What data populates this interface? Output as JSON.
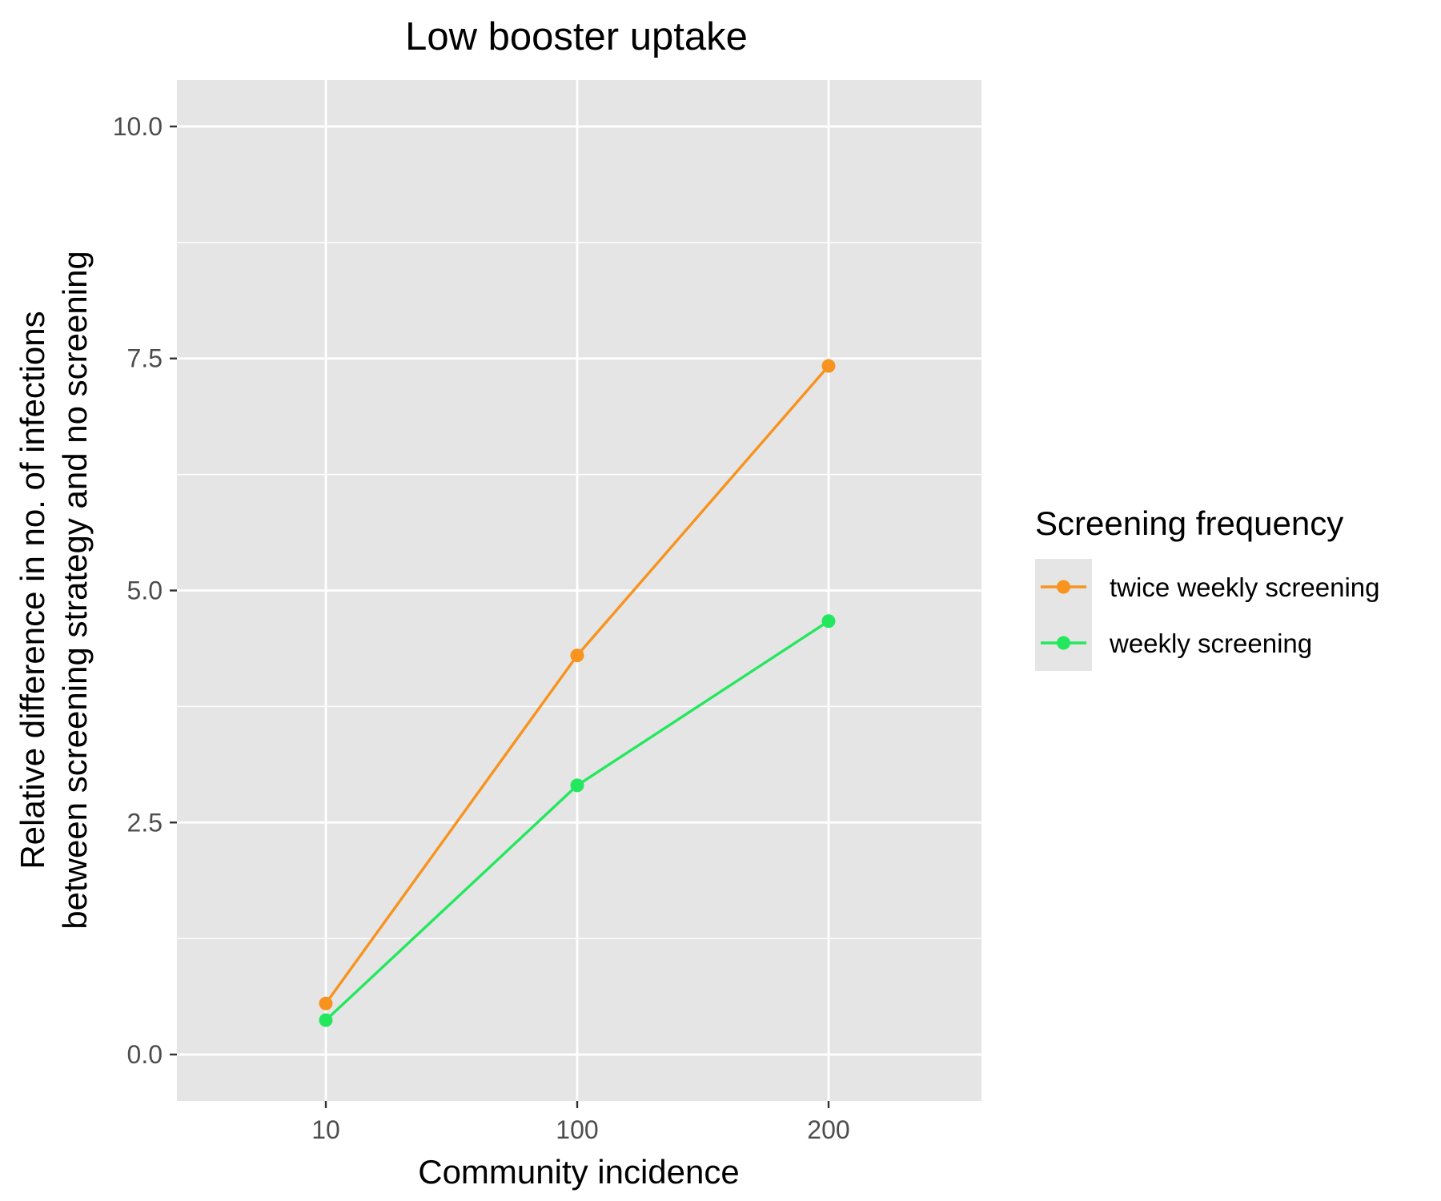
{
  "chart_data": {
    "type": "line",
    "title": "Low booster uptake",
    "xlabel": "Community incidence",
    "ylabel_lines": [
      "Relative differencе in no. of infections",
      "between screening strategy and no screening"
    ],
    "categories": [
      "10",
      "100",
      "200"
    ],
    "y_ticks": [
      "0.0",
      "2.5",
      "5.0",
      "7.5",
      "10.0"
    ],
    "ylim": [
      -0.5,
      10.5
    ],
    "grid": true,
    "legend": {
      "title": "Screening frequency",
      "position": "right"
    },
    "series": [
      {
        "name": "twice weekly screening",
        "color": "#f7931e",
        "values": [
          0.55,
          4.3,
          7.42
        ]
      },
      {
        "name": "weekly screening",
        "color": "#23e85e",
        "values": [
          0.37,
          2.9,
          4.67
        ]
      }
    ]
  },
  "colors": {
    "panel_background": "#e5e5e5",
    "grid_line": "#ffffff",
    "tick_mark": "#333333"
  }
}
